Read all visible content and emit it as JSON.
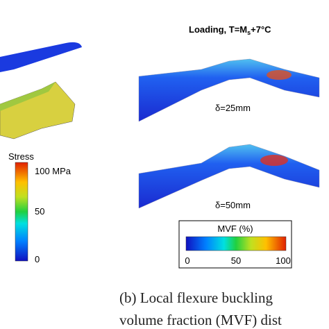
{
  "left_panel": {
    "colorbar": {
      "title": "Stress",
      "ticks": [
        "100 MPa",
        "50",
        "0"
      ]
    }
  },
  "right_panel": {
    "title": {
      "prefix": "Loading, T=M",
      "subscript": "s",
      "suffix": "+7°C"
    },
    "plates": [
      {
        "label": "δ=25mm"
      },
      {
        "label": "δ=50mm"
      }
    ],
    "colorbar": {
      "title": "MVF (%)",
      "ticks": [
        "0",
        "50",
        "100"
      ]
    }
  },
  "caption": {
    "lines": [
      "(b) Local flexure buckling",
      "volume fraction (MVF) dist"
    ]
  }
}
